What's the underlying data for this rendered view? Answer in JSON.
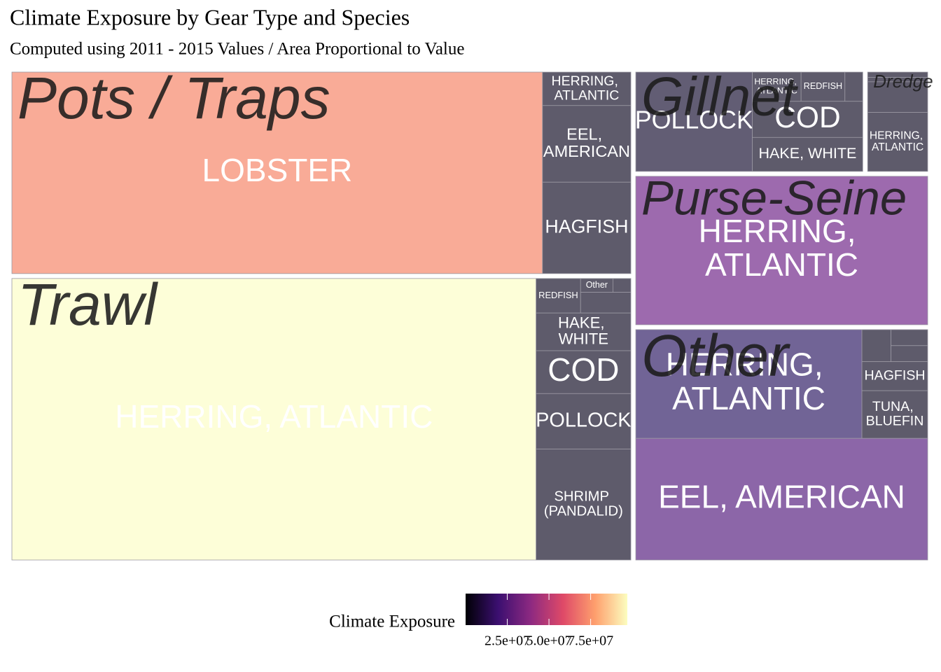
{
  "chart_data": {
    "type": "treemap",
    "title": "Climate Exposure by Gear Type and Species",
    "subtitle": "Computed using 2011 - 2015 Values / Area Proportional to Value",
    "groups": [
      {
        "name": "Pots / Traps",
        "labels": [
          "LOBSTER",
          "HERRING, ATLANTIC",
          "EEL, AMERICAN",
          "HAGFISH"
        ],
        "values": [
          217,
          6.0,
          13.75,
          16.4
        ],
        "colors": [
          "#f9ab97",
          "#5e5b6b",
          "#5e5b6b",
          "#5e5b6b"
        ]
      },
      {
        "name": "Trawl",
        "labels": [
          "HERRING, ATLANTIC",
          "REDFISH",
          "Other",
          null,
          null,
          "HAKE, WHITE",
          "COD",
          "POLLOCK",
          "SHRIMP (PANDALID)"
        ],
        "values": [
          297.5,
          3.1,
          0.9,
          0.5,
          2.1,
          7.2,
          8.2,
          10.6,
          21.2
        ],
        "colors": [
          "#fdfed8",
          "#5e5b6b",
          "#5e5b6b",
          "#5e5b6b",
          "#5e5b6b",
          "#5e5b6b",
          "#5e5b6b",
          "#5e5b6b",
          "#5e5b6b"
        ]
      },
      {
        "name": "Gillnet",
        "labels": [
          "POLLOCK",
          "HERRING, ATLANTIC",
          "REDFISH",
          null,
          "COD",
          "HAKE, WHITE"
        ],
        "values": [
          24.4,
          3.0,
          2.7,
          1.1,
          8.4,
          7.9
        ],
        "colors": [
          "#625d74",
          "#5e5b6b",
          "#5e5b6b",
          "#5e5b6b",
          "#5e5b6b",
          "#5e5b6b"
        ]
      },
      {
        "name": "Dredge",
        "labels": [
          null,
          null,
          null,
          "HERRING, ATLANTIC"
        ],
        "values": [
          0.7,
          0.6,
          4.1,
          7.9
        ],
        "colors": [
          "#5e5b6b",
          "#5e5b6b",
          "#5e5b6b",
          "#5e5b6b"
        ]
      },
      {
        "name": "Purse-Seine",
        "labels": [
          "HERRING, ATLANTIC"
        ],
        "values": [
          89.5
        ],
        "colors": [
          "#9d6aae"
        ]
      },
      {
        "name": "Other",
        "labels": [
          "HERRING, ATLANTIC",
          null,
          null,
          null,
          "HAGFISH",
          "TUNA, BLUEFIN",
          "EEL, AMERICAN"
        ],
        "values": [
          50.2,
          1.9,
          1.2,
          1.2,
          3.9,
          6.4,
          72.5
        ],
        "colors": [
          "#716496",
          "#5e5b6b",
          "#5e5b6b",
          "#5e5b6b",
          "#5e5b6b",
          "#5e5b6b",
          "#8c66a8"
        ]
      }
    ],
    "legend": {
      "title": "Climate Exposure",
      "limits": [
        0,
        97000000
      ],
      "ticks": [
        {
          "value": 25000000,
          "label": "2.5e+07"
        },
        {
          "value": 50000000,
          "label": "5.0e+07"
        },
        {
          "value": 75000000,
          "label": "7.5e+07"
        }
      ],
      "colors": [
        "#000004",
        "#3b0f70",
        "#8c2981",
        "#de4968",
        "#fe9f6d",
        "#fcfdbf"
      ]
    }
  }
}
